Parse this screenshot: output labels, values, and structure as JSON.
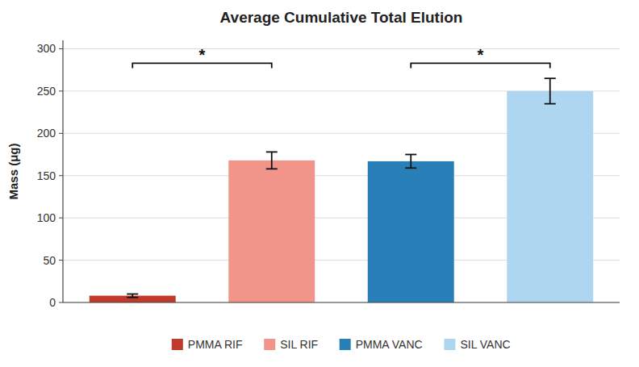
{
  "chart_data": {
    "type": "bar",
    "title": "Average Cumulative Total Elution",
    "ylabel": "Mass (μg)",
    "categories": [
      "PMMA RIF",
      "SIL RIF",
      "PMMA VANC",
      "SIL VANC"
    ],
    "values": [
      8.0,
      168.0,
      167.0,
      250.0
    ],
    "errors": [
      2.0,
      10.0,
      8.0,
      15.0
    ],
    "colors": [
      "#c0392b",
      "#f1948a",
      "#2980b9",
      "#aed6f1"
    ],
    "ylim": [
      0,
      310
    ],
    "yticks": [
      0,
      50,
      100,
      150,
      200,
      250,
      300
    ],
    "grid": true,
    "legend": "bottom",
    "tick_labels": "y",
    "annotations": [
      {
        "text": "*",
        "from": "PMMA RIF",
        "to": "SIL RIF",
        "y": 283,
        "drop": 6
      },
      {
        "text": "*",
        "from": "PMMA VANC",
        "to": "SIL VANC",
        "y": 283,
        "drop": 6
      }
    ]
  }
}
